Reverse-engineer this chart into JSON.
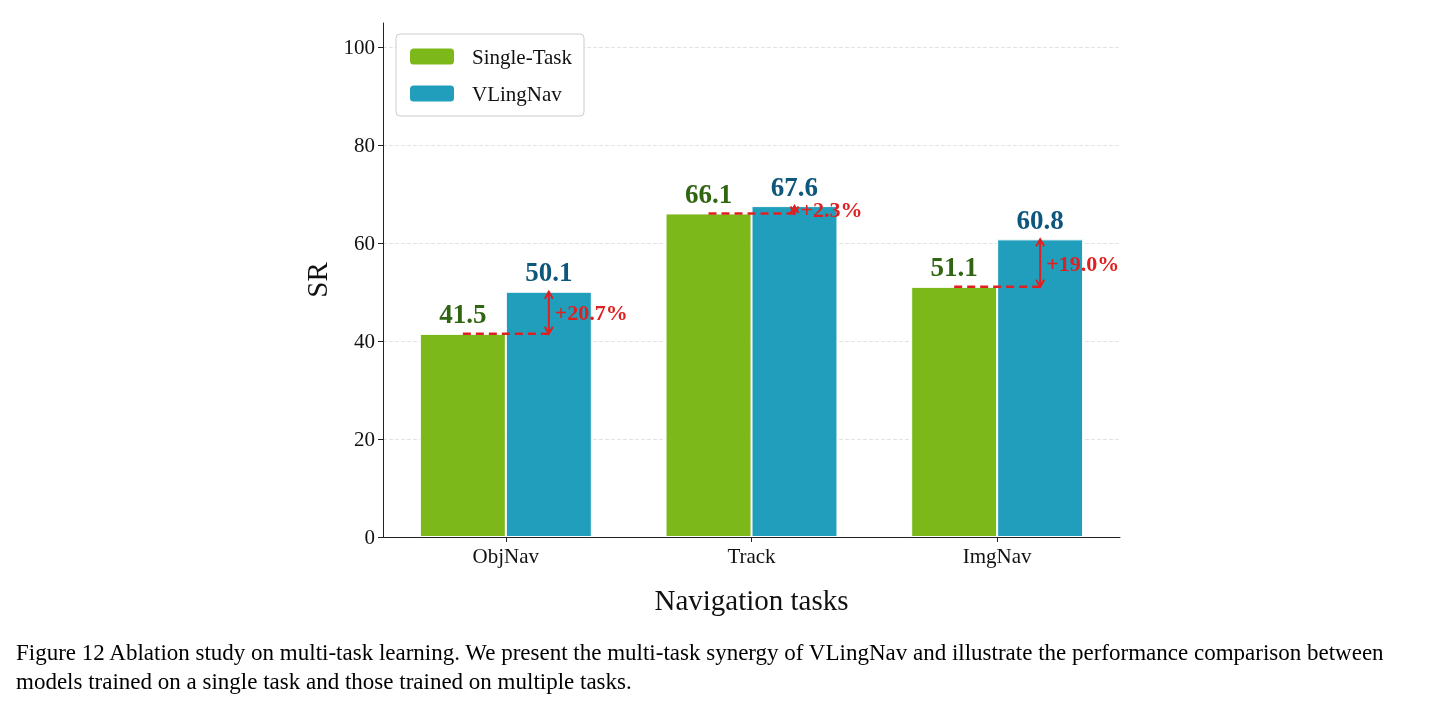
{
  "chart_data": {
    "type": "bar",
    "xlabel": "Navigation tasks",
    "ylabel": "SR",
    "categories": [
      "ObjNav",
      "Track",
      "ImgNav"
    ],
    "series": [
      {
        "name": "Single-Task",
        "color": "#7db81a",
        "values": [
          41.5,
          66.1,
          51.1
        ]
      },
      {
        "name": "VLingNav",
        "color": "#219ebc",
        "values": [
          50.1,
          67.6,
          60.8
        ]
      }
    ],
    "data_labels": true,
    "ylim": [
      0,
      105
    ],
    "yticks": [
      0,
      20,
      40,
      60,
      80,
      100
    ],
    "grid": "y",
    "legend": "top left",
    "annotations": [
      {
        "text": "+20.7%",
        "x": "ObjNav",
        "y": 45.8
      },
      {
        "text": "+2.3%",
        "x": "Track",
        "y": 67
      },
      {
        "text": "+19.0%",
        "x": "ImgNav",
        "y": 55.9
      },
      "Figure 12  Ablation study on multi-task learning. We present the multi-task synergy of VLingNav and illustrate the performance comparison between models trained on a single task and those trained on multiple tasks."
    ]
  }
}
